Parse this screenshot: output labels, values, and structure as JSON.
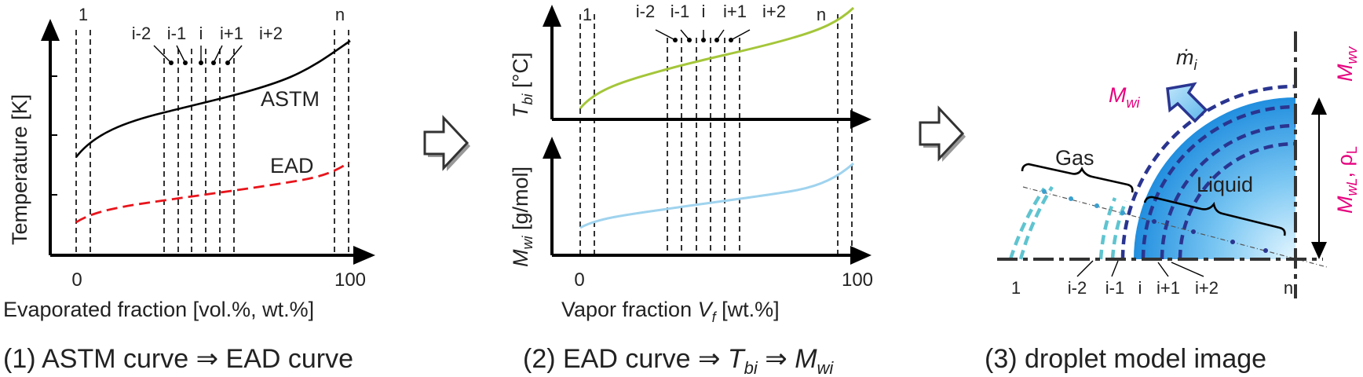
{
  "panel1": {
    "caption": "(1) ASTM curve ⇒ EAD curve",
    "y_label": "Temperature [K]",
    "x_label": "Evaporated fraction [vol.%, wt.%]",
    "x_tick_0": "0",
    "x_tick_100": "100",
    "curve_astm": "ASTM",
    "curve_ead": "EAD",
    "idx_1": "1",
    "idx_im2": "i-2",
    "idx_im1": "i-1",
    "idx_i": "i",
    "idx_ip1": "i+1",
    "idx_ip2": "i+2",
    "idx_n": "n",
    "colors": {
      "astm": "#000000",
      "ead": "#e8141b"
    }
  },
  "panel2": {
    "caption_a": "(2) EAD curve ⇒ ",
    "caption_T": "T",
    "caption_T_sub": "bi",
    "caption_mid": " ⇒ ",
    "caption_M": "M",
    "caption_M_sub": "wi",
    "top_y_label_T": "T",
    "top_y_label_sub": "bi",
    "top_y_label_unit": " [°C]",
    "bottom_y_label_M": "M",
    "bottom_y_label_sub": "wi",
    "bottom_y_label_unit": " [g/mol]",
    "x_label_a": "Vapor fraction ",
    "x_label_V": "V",
    "x_label_sub": "f",
    "x_label_unit": " [wt.%]",
    "x_tick_0": "0",
    "x_tick_100": "100",
    "idx_1": "1",
    "idx_im2": "i-2",
    "idx_im1": "i-1",
    "idx_i": "i",
    "idx_ip1": "i+1",
    "idx_ip2": "i+2",
    "idx_n": "n",
    "colors": {
      "tbi": "#a4c639",
      "mwi": "#9fd3ee"
    }
  },
  "panel3": {
    "caption": "(3) droplet model image",
    "gas_label": "Gas",
    "liquid_label": "Liquid",
    "mdot_label": "ṁ",
    "mdot_sub": "i",
    "mwi_label": "M",
    "mwi_sub": "wi",
    "mwv_label": "M",
    "mwv_sub": "wv",
    "mwl_label": "M",
    "mwl_sub": "wL",
    "rho_label": ", ρ",
    "rho_sub": "L",
    "idx_1": "1",
    "idx_im2": "i-2",
    "idx_im1": "i-1",
    "idx_i": "i",
    "idx_ip1": "i+1",
    "idx_ip2": "i+2",
    "idx_n": "n",
    "colors": {
      "accent": "#e6007e",
      "droplet": "#1e90e0",
      "shell": "#2a3590",
      "gas_shell": "#5fc4d0"
    }
  },
  "arrows": {
    "icon": "hollow-right-arrow-icon"
  }
}
